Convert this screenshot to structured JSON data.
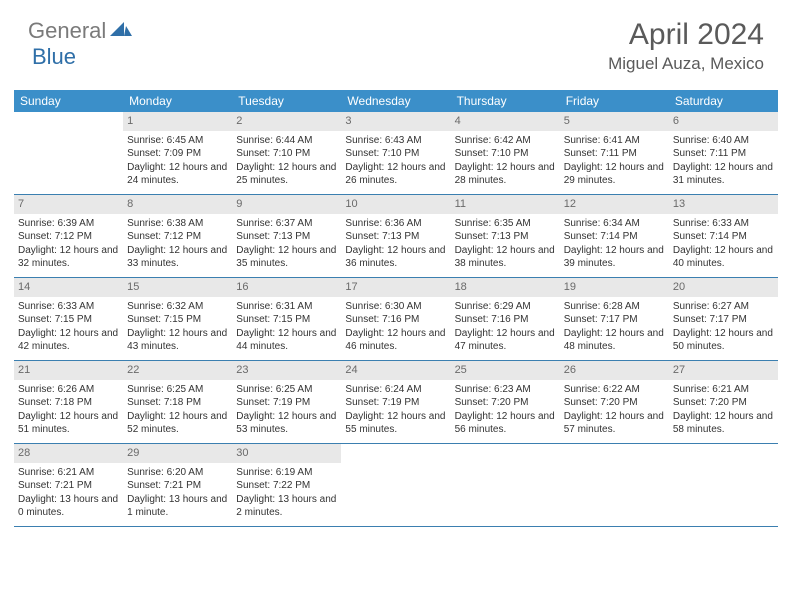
{
  "logo": {
    "gray": "General",
    "blue": "Blue"
  },
  "title": "April 2024",
  "location": "Miguel Auza, Mexico",
  "colors": {
    "header_bar": "#3b8fc9",
    "daynum_bg": "#e8e8e8",
    "text": "#333333",
    "border": "#3b7fb0"
  },
  "weekdays": [
    "Sunday",
    "Monday",
    "Tuesday",
    "Wednesday",
    "Thursday",
    "Friday",
    "Saturday"
  ],
  "weeks": [
    [
      {
        "n": "",
        "lines": []
      },
      {
        "n": "1",
        "lines": [
          "Sunrise: 6:45 AM",
          "Sunset: 7:09 PM",
          "Daylight: 12 hours and 24 minutes."
        ]
      },
      {
        "n": "2",
        "lines": [
          "Sunrise: 6:44 AM",
          "Sunset: 7:10 PM",
          "Daylight: 12 hours and 25 minutes."
        ]
      },
      {
        "n": "3",
        "lines": [
          "Sunrise: 6:43 AM",
          "Sunset: 7:10 PM",
          "Daylight: 12 hours and 26 minutes."
        ]
      },
      {
        "n": "4",
        "lines": [
          "Sunrise: 6:42 AM",
          "Sunset: 7:10 PM",
          "Daylight: 12 hours and 28 minutes."
        ]
      },
      {
        "n": "5",
        "lines": [
          "Sunrise: 6:41 AM",
          "Sunset: 7:11 PM",
          "Daylight: 12 hours and 29 minutes."
        ]
      },
      {
        "n": "6",
        "lines": [
          "Sunrise: 6:40 AM",
          "Sunset: 7:11 PM",
          "Daylight: 12 hours and 31 minutes."
        ]
      }
    ],
    [
      {
        "n": "7",
        "lines": [
          "Sunrise: 6:39 AM",
          "Sunset: 7:12 PM",
          "Daylight: 12 hours and 32 minutes."
        ]
      },
      {
        "n": "8",
        "lines": [
          "Sunrise: 6:38 AM",
          "Sunset: 7:12 PM",
          "Daylight: 12 hours and 33 minutes."
        ]
      },
      {
        "n": "9",
        "lines": [
          "Sunrise: 6:37 AM",
          "Sunset: 7:13 PM",
          "Daylight: 12 hours and 35 minutes."
        ]
      },
      {
        "n": "10",
        "lines": [
          "Sunrise: 6:36 AM",
          "Sunset: 7:13 PM",
          "Daylight: 12 hours and 36 minutes."
        ]
      },
      {
        "n": "11",
        "lines": [
          "Sunrise: 6:35 AM",
          "Sunset: 7:13 PM",
          "Daylight: 12 hours and 38 minutes."
        ]
      },
      {
        "n": "12",
        "lines": [
          "Sunrise: 6:34 AM",
          "Sunset: 7:14 PM",
          "Daylight: 12 hours and 39 minutes."
        ]
      },
      {
        "n": "13",
        "lines": [
          "Sunrise: 6:33 AM",
          "Sunset: 7:14 PM",
          "Daylight: 12 hours and 40 minutes."
        ]
      }
    ],
    [
      {
        "n": "14",
        "lines": [
          "Sunrise: 6:33 AM",
          "Sunset: 7:15 PM",
          "Daylight: 12 hours and 42 minutes."
        ]
      },
      {
        "n": "15",
        "lines": [
          "Sunrise: 6:32 AM",
          "Sunset: 7:15 PM",
          "Daylight: 12 hours and 43 minutes."
        ]
      },
      {
        "n": "16",
        "lines": [
          "Sunrise: 6:31 AM",
          "Sunset: 7:15 PM",
          "Daylight: 12 hours and 44 minutes."
        ]
      },
      {
        "n": "17",
        "lines": [
          "Sunrise: 6:30 AM",
          "Sunset: 7:16 PM",
          "Daylight: 12 hours and 46 minutes."
        ]
      },
      {
        "n": "18",
        "lines": [
          "Sunrise: 6:29 AM",
          "Sunset: 7:16 PM",
          "Daylight: 12 hours and 47 minutes."
        ]
      },
      {
        "n": "19",
        "lines": [
          "Sunrise: 6:28 AM",
          "Sunset: 7:17 PM",
          "Daylight: 12 hours and 48 minutes."
        ]
      },
      {
        "n": "20",
        "lines": [
          "Sunrise: 6:27 AM",
          "Sunset: 7:17 PM",
          "Daylight: 12 hours and 50 minutes."
        ]
      }
    ],
    [
      {
        "n": "21",
        "lines": [
          "Sunrise: 6:26 AM",
          "Sunset: 7:18 PM",
          "Daylight: 12 hours and 51 minutes."
        ]
      },
      {
        "n": "22",
        "lines": [
          "Sunrise: 6:25 AM",
          "Sunset: 7:18 PM",
          "Daylight: 12 hours and 52 minutes."
        ]
      },
      {
        "n": "23",
        "lines": [
          "Sunrise: 6:25 AM",
          "Sunset: 7:19 PM",
          "Daylight: 12 hours and 53 minutes."
        ]
      },
      {
        "n": "24",
        "lines": [
          "Sunrise: 6:24 AM",
          "Sunset: 7:19 PM",
          "Daylight: 12 hours and 55 minutes."
        ]
      },
      {
        "n": "25",
        "lines": [
          "Sunrise: 6:23 AM",
          "Sunset: 7:20 PM",
          "Daylight: 12 hours and 56 minutes."
        ]
      },
      {
        "n": "26",
        "lines": [
          "Sunrise: 6:22 AM",
          "Sunset: 7:20 PM",
          "Daylight: 12 hours and 57 minutes."
        ]
      },
      {
        "n": "27",
        "lines": [
          "Sunrise: 6:21 AM",
          "Sunset: 7:20 PM",
          "Daylight: 12 hours and 58 minutes."
        ]
      }
    ],
    [
      {
        "n": "28",
        "lines": [
          "Sunrise: 6:21 AM",
          "Sunset: 7:21 PM",
          "Daylight: 13 hours and 0 minutes."
        ]
      },
      {
        "n": "29",
        "lines": [
          "Sunrise: 6:20 AM",
          "Sunset: 7:21 PM",
          "Daylight: 13 hours and 1 minute."
        ]
      },
      {
        "n": "30",
        "lines": [
          "Sunrise: 6:19 AM",
          "Sunset: 7:22 PM",
          "Daylight: 13 hours and 2 minutes."
        ]
      },
      {
        "n": "",
        "lines": []
      },
      {
        "n": "",
        "lines": []
      },
      {
        "n": "",
        "lines": []
      },
      {
        "n": "",
        "lines": []
      }
    ]
  ]
}
